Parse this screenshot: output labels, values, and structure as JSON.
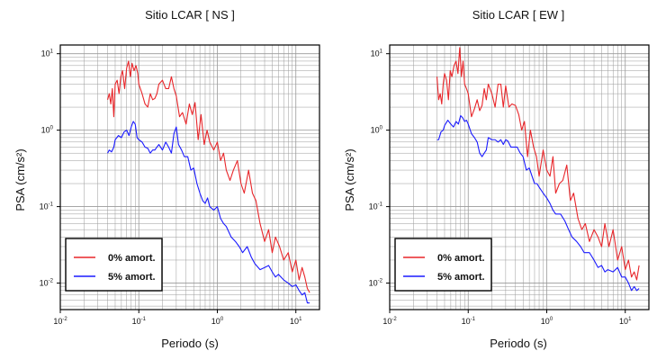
{
  "figure": {
    "y_axis_label": "PSA (cm/s²)",
    "x_axis_label": "Periodo (s)"
  },
  "chart_data": [
    {
      "type": "line",
      "title": "Sitio LCAR [ NS ]",
      "xlabel": "Periodo (s)",
      "ylabel": "PSA (cm/s²)",
      "xscale": "log",
      "yscale": "log",
      "xlim": [
        0.01,
        20
      ],
      "ylim": [
        0.0045,
        13
      ],
      "grid": true,
      "legend_position": "bottom-left",
      "x_ticks": [
        {
          "base": "10",
          "exp": "-2"
        },
        {
          "base": "10",
          "exp": "-1"
        },
        {
          "base": "10",
          "exp": "0"
        },
        {
          "base": "10",
          "exp": "1"
        }
      ],
      "y_ticks": [
        {
          "base": "10",
          "exp": "-2"
        },
        {
          "base": "10",
          "exp": "-1"
        },
        {
          "base": "10",
          "exp": "0"
        },
        {
          "base": "10",
          "exp": "1"
        }
      ],
      "series": [
        {
          "name": "0% amort.",
          "color": "#e8262a",
          "x": [
            0.04,
            0.042,
            0.044,
            0.046,
            0.048,
            0.05,
            0.053,
            0.056,
            0.059,
            0.062,
            0.066,
            0.07,
            0.074,
            0.078,
            0.082,
            0.087,
            0.092,
            0.097,
            0.1,
            0.11,
            0.12,
            0.13,
            0.14,
            0.15,
            0.16,
            0.17,
            0.18,
            0.2,
            0.22,
            0.24,
            0.26,
            0.28,
            0.3,
            0.33,
            0.36,
            0.4,
            0.44,
            0.48,
            0.52,
            0.57,
            0.62,
            0.68,
            0.74,
            0.8,
            0.9,
            1.0,
            1.1,
            1.2,
            1.3,
            1.45,
            1.6,
            1.8,
            2.0,
            2.2,
            2.5,
            2.8,
            3.1,
            3.5,
            4.0,
            4.5,
            5.0,
            5.5,
            6.2,
            7.0,
            8.0,
            9.0,
            10.0,
            11.0,
            12.0,
            13.0,
            14.0,
            15.0
          ],
          "y": [
            2.5,
            3.0,
            2.2,
            3.5,
            1.5,
            4.0,
            4.5,
            3.0,
            5.0,
            6.0,
            3.5,
            6.5,
            8.0,
            5.0,
            7.5,
            6.0,
            7.0,
            5.5,
            4.0,
            3.0,
            2.2,
            2.0,
            3.0,
            2.5,
            2.6,
            3.0,
            4.0,
            4.5,
            3.5,
            3.5,
            5.0,
            3.5,
            2.8,
            1.5,
            1.7,
            1.2,
            2.2,
            1.6,
            2.3,
            0.75,
            1.6,
            0.65,
            1.0,
            0.7,
            0.55,
            0.7,
            0.4,
            0.5,
            0.3,
            0.22,
            0.3,
            0.4,
            0.2,
            0.15,
            0.3,
            0.15,
            0.12,
            0.06,
            0.035,
            0.05,
            0.025,
            0.04,
            0.03,
            0.02,
            0.025,
            0.014,
            0.02,
            0.011,
            0.016,
            0.012,
            0.0085,
            0.0075
          ]
        },
        {
          "name": "5% amort.",
          "color": "#1a1aff",
          "x": [
            0.04,
            0.042,
            0.045,
            0.048,
            0.05,
            0.055,
            0.06,
            0.065,
            0.07,
            0.075,
            0.08,
            0.085,
            0.09,
            0.095,
            0.1,
            0.11,
            0.12,
            0.13,
            0.14,
            0.15,
            0.16,
            0.17,
            0.18,
            0.2,
            0.22,
            0.24,
            0.26,
            0.28,
            0.3,
            0.32,
            0.35,
            0.38,
            0.42,
            0.46,
            0.5,
            0.55,
            0.6,
            0.65,
            0.7,
            0.75,
            0.8,
            0.9,
            1.0,
            1.1,
            1.2,
            1.3,
            1.5,
            1.7,
            1.9,
            2.1,
            2.4,
            2.7,
            3.0,
            3.5,
            4.0,
            4.5,
            5.0,
            5.5,
            6.0,
            7.0,
            8.0,
            9.0,
            10.0,
            11.0,
            12.0,
            13.0,
            14.0,
            15.0
          ],
          "y": [
            0.5,
            0.55,
            0.52,
            0.6,
            0.75,
            0.85,
            0.8,
            0.95,
            1.0,
            0.85,
            1.1,
            1.3,
            1.2,
            0.8,
            0.75,
            0.7,
            0.6,
            0.58,
            0.5,
            0.55,
            0.55,
            0.6,
            0.65,
            0.55,
            0.7,
            0.6,
            0.5,
            0.9,
            1.1,
            0.65,
            0.55,
            0.45,
            0.45,
            0.3,
            0.32,
            0.2,
            0.15,
            0.12,
            0.11,
            0.13,
            0.1,
            0.09,
            0.1,
            0.07,
            0.06,
            0.055,
            0.04,
            0.035,
            0.03,
            0.025,
            0.03,
            0.022,
            0.018,
            0.015,
            0.016,
            0.017,
            0.014,
            0.012,
            0.013,
            0.011,
            0.01,
            0.009,
            0.0095,
            0.008,
            0.007,
            0.0075,
            0.0055,
            0.0055
          ]
        }
      ]
    },
    {
      "type": "line",
      "title": "Sitio LCAR [ EW ]",
      "xlabel": "Periodo (s)",
      "ylabel": "PSA (cm/s²)",
      "xscale": "log",
      "yscale": "log",
      "xlim": [
        0.01,
        20
      ],
      "ylim": [
        0.0045,
        13
      ],
      "grid": true,
      "legend_position": "bottom-left",
      "x_ticks": [
        {
          "base": "10",
          "exp": "-2"
        },
        {
          "base": "10",
          "exp": "-1"
        },
        {
          "base": "10",
          "exp": "0"
        },
        {
          "base": "10",
          "exp": "1"
        }
      ],
      "y_ticks": [
        {
          "base": "10",
          "exp": "-2"
        },
        {
          "base": "10",
          "exp": "-1"
        },
        {
          "base": "10",
          "exp": "0"
        },
        {
          "base": "10",
          "exp": "1"
        }
      ],
      "series": [
        {
          "name": "0% amort.",
          "color": "#e8262a",
          "x": [
            0.04,
            0.042,
            0.044,
            0.046,
            0.048,
            0.05,
            0.053,
            0.056,
            0.059,
            0.062,
            0.066,
            0.07,
            0.074,
            0.078,
            0.082,
            0.086,
            0.09,
            0.095,
            0.1,
            0.11,
            0.12,
            0.13,
            0.14,
            0.15,
            0.16,
            0.17,
            0.18,
            0.2,
            0.22,
            0.24,
            0.26,
            0.28,
            0.3,
            0.33,
            0.36,
            0.4,
            0.44,
            0.48,
            0.52,
            0.57,
            0.62,
            0.68,
            0.74,
            0.8,
            0.9,
            1.0,
            1.1,
            1.2,
            1.3,
            1.45,
            1.6,
            1.8,
            2.0,
            2.2,
            2.5,
            2.8,
            3.1,
            3.5,
            4.0,
            4.5,
            5.0,
            5.5,
            6.2,
            7.0,
            8.0,
            9.0,
            10.0,
            11.0,
            12.0,
            13.0,
            14.0,
            15.0
          ],
          "y": [
            5.0,
            2.5,
            3.0,
            2.2,
            4.0,
            5.5,
            4.5,
            2.5,
            6.0,
            5.0,
            7.0,
            8.0,
            5.5,
            12.0,
            5.0,
            8.0,
            4.0,
            3.5,
            3.0,
            1.5,
            1.9,
            2.5,
            1.8,
            2.1,
            3.5,
            2.5,
            4.0,
            3.0,
            2.0,
            4.0,
            4.0,
            2.0,
            3.8,
            2.0,
            2.2,
            2.1,
            1.6,
            1.0,
            1.3,
            0.45,
            1.0,
            0.6,
            0.45,
            0.25,
            0.55,
            0.3,
            0.25,
            0.45,
            0.15,
            0.2,
            0.22,
            0.35,
            0.12,
            0.15,
            0.07,
            0.05,
            0.06,
            0.035,
            0.05,
            0.04,
            0.03,
            0.06,
            0.03,
            0.05,
            0.02,
            0.03,
            0.015,
            0.02,
            0.012,
            0.014,
            0.011,
            0.017
          ]
        },
        {
          "name": "5% amort.",
          "color": "#1a1aff",
          "x": [
            0.04,
            0.042,
            0.045,
            0.048,
            0.05,
            0.055,
            0.06,
            0.065,
            0.07,
            0.075,
            0.08,
            0.085,
            0.09,
            0.095,
            0.1,
            0.11,
            0.12,
            0.13,
            0.14,
            0.15,
            0.16,
            0.17,
            0.18,
            0.2,
            0.22,
            0.24,
            0.26,
            0.28,
            0.3,
            0.32,
            0.35,
            0.38,
            0.42,
            0.46,
            0.5,
            0.55,
            0.6,
            0.65,
            0.7,
            0.75,
            0.8,
            0.9,
            1.0,
            1.1,
            1.2,
            1.3,
            1.5,
            1.7,
            1.9,
            2.1,
            2.4,
            2.7,
            3.0,
            3.5,
            4.0,
            4.5,
            5.0,
            5.5,
            6.0,
            7.0,
            8.0,
            9.0,
            10.0,
            11.0,
            12.0,
            13.0,
            14.0,
            15.0
          ],
          "y": [
            0.75,
            0.75,
            0.95,
            1.0,
            1.15,
            1.35,
            1.2,
            1.1,
            1.3,
            1.2,
            1.55,
            1.45,
            1.3,
            1.35,
            1.2,
            0.9,
            0.8,
            0.7,
            0.5,
            0.45,
            0.5,
            0.55,
            0.8,
            0.75,
            0.75,
            0.7,
            0.75,
            0.65,
            0.75,
            0.72,
            0.6,
            0.6,
            0.6,
            0.5,
            0.45,
            0.3,
            0.32,
            0.25,
            0.2,
            0.2,
            0.18,
            0.15,
            0.13,
            0.11,
            0.09,
            0.08,
            0.08,
            0.065,
            0.05,
            0.04,
            0.035,
            0.03,
            0.025,
            0.025,
            0.02,
            0.016,
            0.017,
            0.014,
            0.015,
            0.014,
            0.016,
            0.012,
            0.012,
            0.01,
            0.008,
            0.009,
            0.008,
            0.0085
          ]
        }
      ]
    }
  ]
}
